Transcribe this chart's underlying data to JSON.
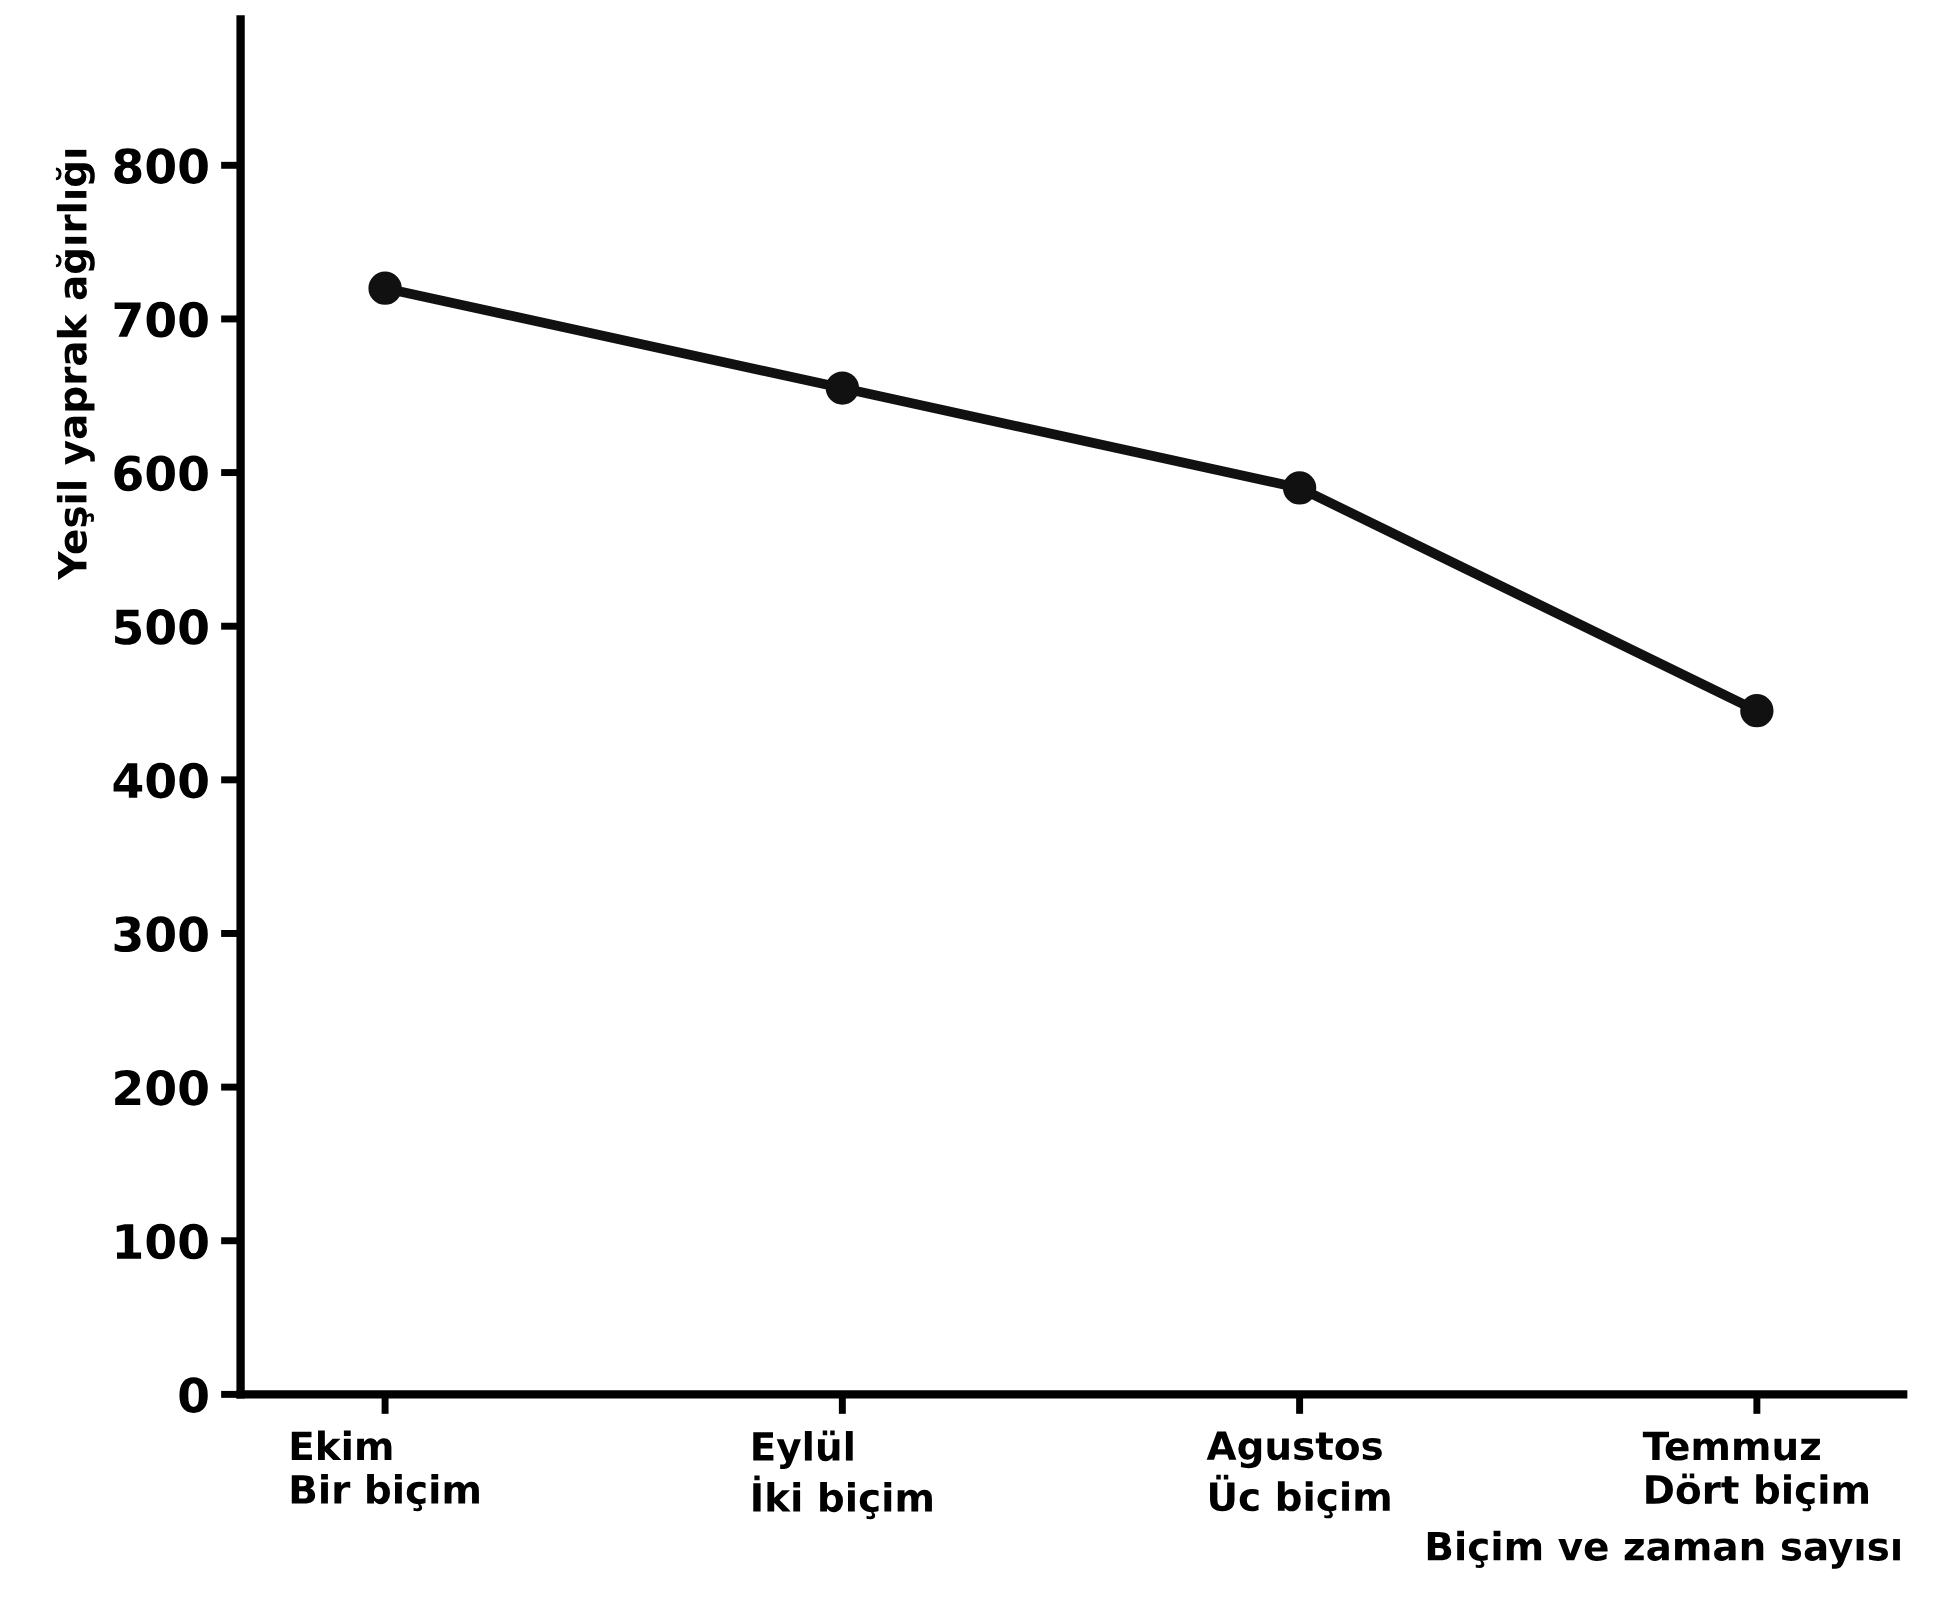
{
  "chart_data": {
    "type": "line",
    "xlabel": "Biçim ve zaman sayısı",
    "ylabel": "Yeşil yaprak ağırlığı",
    "categories": [
      "Ekim\nBir biçim",
      "Eylül\nİki biçim",
      "Agustos\nÜc biçim",
      "Temmuz\nDört biçim"
    ],
    "series": [
      {
        "color": "#111111",
        "values": [
          720,
          655,
          590,
          445
        ]
      }
    ],
    "ylim": [
      0,
      895
    ],
    "yticks": [
      0,
      100,
      200,
      300,
      400,
      500,
      600,
      700,
      800
    ],
    "marker": "circle",
    "line_style": "solid",
    "grid": false,
    "legend": false
  }
}
